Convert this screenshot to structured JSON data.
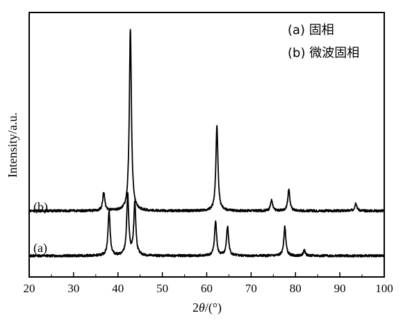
{
  "chart_data": {
    "type": "line",
    "xlabel_prefix": "2",
    "xlabel_theta": "θ",
    "xlabel_suffix": "/(°)",
    "ylabel": "Intensity/a.u.",
    "xlim": [
      20,
      100
    ],
    "ylim": [
      0,
      100
    ],
    "x_ticks": [
      20,
      30,
      40,
      50,
      60,
      70,
      80,
      90,
      100
    ],
    "y_ticks_labeled": false,
    "grid": false,
    "legend_position": "top-right",
    "legend": [
      "(a) 固相",
      "(b) 微波固相"
    ],
    "series": [
      {
        "label": "(a)",
        "baseline": 8,
        "peaks": [
          {
            "x": 38.0,
            "y": 17
          },
          {
            "x": 42.2,
            "y": 23
          },
          {
            "x": 43.8,
            "y": 20
          },
          {
            "x": 62.0,
            "y": 13
          },
          {
            "x": 64.7,
            "y": 11
          },
          {
            "x": 77.6,
            "y": 11
          },
          {
            "x": 82.0,
            "y": 2
          }
        ]
      },
      {
        "label": "(b)",
        "baseline": 25,
        "peaks": [
          {
            "x": 36.8,
            "y": 7
          },
          {
            "x": 42.8,
            "y": 69
          },
          {
            "x": 62.3,
            "y": 32
          },
          {
            "x": 74.6,
            "y": 4
          },
          {
            "x": 78.5,
            "y": 8
          },
          {
            "x": 93.6,
            "y": 3
          }
        ]
      }
    ]
  }
}
